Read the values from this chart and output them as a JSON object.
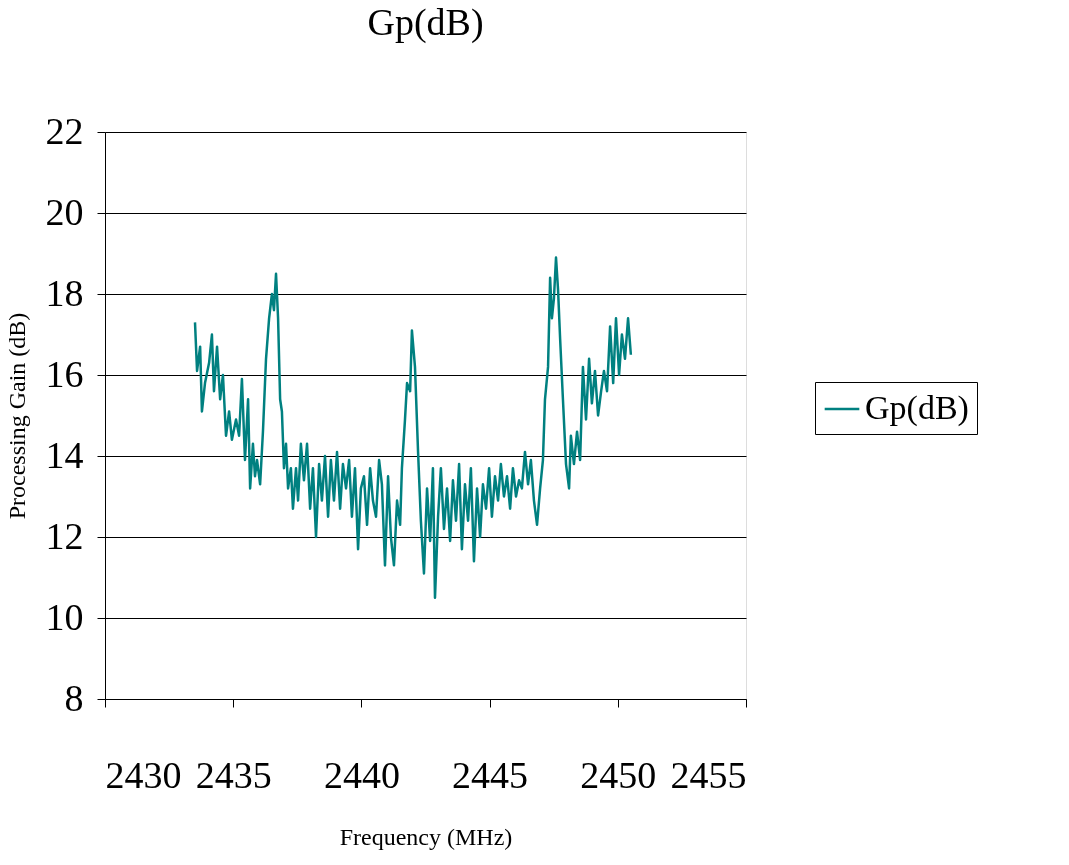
{
  "chart_data": {
    "type": "line",
    "title": "Gp(dB)",
    "xlabel": "Frequency (MHz)",
    "ylabel": "Processing Gain (dB)",
    "xlim": [
      2430,
      2455
    ],
    "xticks": [
      2430,
      2435,
      2440,
      2445,
      2450,
      2455
    ],
    "ylim": [
      8,
      22
    ],
    "yticks": [
      8,
      10,
      12,
      14,
      16,
      18,
      20,
      22
    ],
    "grid": "y",
    "legend": "right",
    "marker": "none",
    "line_style": "solid",
    "x": [
      2433.51,
      2433.59,
      2433.71,
      2433.78,
      2433.9,
      2434.06,
      2434.17,
      2434.25,
      2434.37,
      2434.49,
      2434.6,
      2434.72,
      2434.84,
      2434.95,
      2435.11,
      2435.23,
      2435.34,
      2435.46,
      2435.58,
      2435.66,
      2435.77,
      2435.85,
      2435.93,
      2436.05,
      2436.16,
      2436.28,
      2436.4,
      2436.51,
      2436.59,
      2436.67,
      2436.75,
      2436.83,
      2436.9,
      2436.98,
      2437.06,
      2437.14,
      2437.25,
      2437.33,
      2437.45,
      2437.53,
      2437.64,
      2437.76,
      2437.88,
      2438.0,
      2438.11,
      2438.23,
      2438.35,
      2438.46,
      2438.58,
      2438.7,
      2438.81,
      2438.93,
      2439.05,
      2439.17,
      2439.28,
      2439.4,
      2439.52,
      2439.63,
      2439.75,
      2439.87,
      2439.98,
      2440.1,
      2440.22,
      2440.34,
      2440.45,
      2440.57,
      2440.69,
      2440.8,
      2440.92,
      2441.04,
      2441.15,
      2441.27,
      2441.39,
      2441.51,
      2441.58,
      2441.7,
      2441.78,
      2441.9,
      2441.97,
      2442.09,
      2442.21,
      2442.32,
      2442.44,
      2442.56,
      2442.68,
      2442.79,
      2442.87,
      2442.99,
      2443.1,
      2443.22,
      2443.34,
      2443.46,
      2443.57,
      2443.69,
      2443.81,
      2443.92,
      2444.04,
      2444.16,
      2444.27,
      2444.39,
      2444.51,
      2444.63,
      2444.74,
      2444.86,
      2444.98,
      2445.09,
      2445.21,
      2445.33,
      2445.44,
      2445.56,
      2445.68,
      2445.8,
      2445.91,
      2446.03,
      2446.15,
      2446.26,
      2446.38,
      2446.5,
      2446.61,
      2446.73,
      2446.85,
      2446.97,
      2447.08,
      2447.16,
      2447.28,
      2447.36,
      2447.43,
      2447.51,
      2447.59,
      2447.67,
      2447.75,
      2447.86,
      2447.98,
      2448.1,
      2448.17,
      2448.29,
      2448.41,
      2448.53,
      2448.64,
      2448.76,
      2448.88,
      2448.99,
      2449.11,
      2449.23,
      2449.35,
      2449.46,
      2449.58,
      2449.7,
      2449.82,
      2449.93,
      2450.05,
      2450.16,
      2450.28,
      2450.4,
      2450.51
    ],
    "series": [
      {
        "name": "Gp(dB)",
        "color": "#008080",
        "values": [
          17.3,
          16.1,
          16.7,
          15.1,
          15.8,
          16.3,
          17.0,
          15.6,
          16.7,
          15.4,
          16.0,
          14.5,
          15.1,
          14.4,
          14.9,
          14.5,
          15.9,
          13.9,
          15.4,
          13.2,
          14.3,
          13.5,
          13.9,
          13.3,
          14.6,
          16.4,
          17.4,
          18.0,
          17.6,
          18.5,
          17.4,
          15.4,
          15.1,
          13.7,
          14.3,
          13.2,
          13.7,
          12.7,
          13.7,
          12.9,
          14.3,
          13.4,
          14.3,
          12.7,
          13.7,
          12.0,
          13.8,
          12.9,
          14.0,
          12.5,
          13.9,
          12.9,
          14.1,
          12.7,
          13.8,
          13.2,
          13.9,
          12.5,
          13.7,
          11.7,
          13.2,
          13.5,
          12.3,
          13.7,
          12.9,
          12.5,
          13.9,
          13.3,
          11.3,
          13.5,
          12.0,
          11.3,
          12.9,
          12.3,
          13.7,
          14.9,
          15.8,
          15.6,
          17.1,
          16.2,
          14.1,
          12.4,
          11.1,
          13.2,
          11.9,
          13.7,
          10.5,
          12.5,
          13.7,
          12.2,
          13.2,
          11.9,
          13.4,
          12.4,
          13.8,
          11.7,
          13.3,
          12.4,
          13.7,
          11.4,
          13.2,
          12.0,
          13.3,
          12.7,
          13.7,
          12.5,
          13.5,
          12.9,
          13.8,
          13.0,
          13.5,
          12.7,
          13.7,
          13.0,
          13.4,
          13.2,
          14.1,
          13.3,
          13.9,
          12.9,
          12.3,
          13.2,
          13.9,
          15.4,
          16.2,
          18.4,
          17.4,
          17.9,
          18.9,
          18.1,
          16.9,
          15.4,
          13.8,
          13.2,
          14.5,
          13.8,
          14.6,
          13.9,
          16.2,
          14.9,
          16.4,
          15.3,
          16.1,
          15.0,
          15.6,
          16.1,
          15.6,
          17.2,
          15.8,
          17.4,
          16.0,
          17.0,
          16.4,
          17.4,
          16.5
        ]
      }
    ]
  }
}
